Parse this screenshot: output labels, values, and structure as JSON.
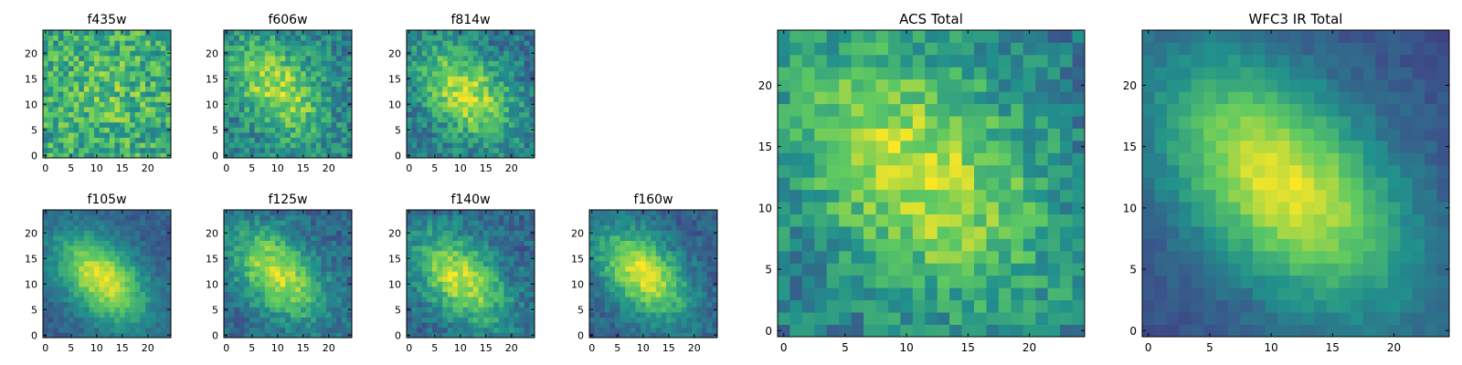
{
  "figure": {
    "background": "#ffffff",
    "colormap": "viridis",
    "colormap_stops": [
      "#440154",
      "#3b528b",
      "#21918c",
      "#5ec962",
      "#fde725"
    ]
  },
  "chart_data": [
    {
      "type": "heatmap",
      "title": "f435w",
      "grid_size": 25,
      "xlim": [
        0,
        24
      ],
      "ylim": [
        0,
        24
      ],
      "x_ticks": [
        "0",
        "5",
        "10",
        "15",
        "20"
      ],
      "y_ticks": [
        "0",
        "5",
        "10",
        "15",
        "20"
      ],
      "profile": {
        "center": [
          12,
          12
        ],
        "sigma_major": 6.0,
        "sigma_minor": 6.0,
        "angle_deg": 0,
        "peak": 0.72,
        "background": 0.6,
        "noise": 0.22
      }
    },
    {
      "type": "heatmap",
      "title": "f606w",
      "grid_size": 25,
      "xlim": [
        0,
        24
      ],
      "ylim": [
        0,
        24
      ],
      "x_ticks": [
        "0",
        "5",
        "10",
        "15",
        "20"
      ],
      "y_ticks": [
        "0",
        "5",
        "10",
        "15",
        "20"
      ],
      "profile": {
        "center": [
          10,
          13
        ],
        "sigma_major": 8.0,
        "sigma_minor": 5.0,
        "angle_deg": -50,
        "peak": 0.88,
        "background": 0.42,
        "noise": 0.17
      }
    },
    {
      "type": "heatmap",
      "title": "f814w",
      "grid_size": 25,
      "xlim": [
        0,
        24
      ],
      "ylim": [
        0,
        24
      ],
      "x_ticks": [
        "0",
        "5",
        "10",
        "15",
        "20"
      ],
      "y_ticks": [
        "0",
        "5",
        "10",
        "15",
        "20"
      ],
      "profile": {
        "center": [
          11,
          12
        ],
        "sigma_major": 8.0,
        "sigma_minor": 5.0,
        "angle_deg": -45,
        "peak": 0.9,
        "background": 0.38,
        "noise": 0.16
      }
    },
    {
      "type": "heatmap",
      "title": "f105w",
      "grid_size": 25,
      "xlim": [
        0,
        24
      ],
      "ylim": [
        0,
        24
      ],
      "x_ticks": [
        "0",
        "5",
        "10",
        "15",
        "20"
      ],
      "y_ticks": [
        "0",
        "5",
        "10",
        "15",
        "20"
      ],
      "profile": {
        "center": [
          11,
          11
        ],
        "sigma_major": 7.5,
        "sigma_minor": 4.5,
        "angle_deg": -45,
        "peak": 0.95,
        "background": 0.3,
        "noise": 0.08
      }
    },
    {
      "type": "heatmap",
      "title": "f125w",
      "grid_size": 25,
      "xlim": [
        0,
        24
      ],
      "ylim": [
        0,
        24
      ],
      "x_ticks": [
        "0",
        "5",
        "10",
        "15",
        "20"
      ],
      "y_ticks": [
        "0",
        "5",
        "10",
        "15",
        "20"
      ],
      "profile": {
        "center": [
          10,
          12
        ],
        "sigma_major": 7.5,
        "sigma_minor": 4.5,
        "angle_deg": -45,
        "peak": 0.92,
        "background": 0.33,
        "noise": 0.12
      }
    },
    {
      "type": "heatmap",
      "title": "f140w",
      "grid_size": 25,
      "xlim": [
        0,
        24
      ],
      "ylim": [
        0,
        24
      ],
      "x_ticks": [
        "0",
        "5",
        "10",
        "15",
        "20"
      ],
      "y_ticks": [
        "0",
        "5",
        "10",
        "15",
        "20"
      ],
      "profile": {
        "center": [
          10,
          11
        ],
        "sigma_major": 7.5,
        "sigma_minor": 4.5,
        "angle_deg": -45,
        "peak": 0.92,
        "background": 0.33,
        "noise": 0.12
      }
    },
    {
      "type": "heatmap",
      "title": "f160w",
      "grid_size": 25,
      "xlim": [
        0,
        24
      ],
      "ylim": [
        0,
        24
      ],
      "x_ticks": [
        "0",
        "5",
        "10",
        "15",
        "20"
      ],
      "y_ticks": [
        "0",
        "5",
        "10",
        "15",
        "20"
      ],
      "profile": {
        "center": [
          10,
          12
        ],
        "sigma_major": 7.5,
        "sigma_minor": 4.5,
        "angle_deg": -45,
        "peak": 0.95,
        "background": 0.3,
        "noise": 0.1
      }
    },
    {
      "type": "heatmap",
      "title": "ACS Total",
      "grid_size": 25,
      "xlim": [
        0,
        24
      ],
      "ylim": [
        0,
        24
      ],
      "x_ticks": [
        "0",
        "5",
        "10",
        "15",
        "20"
      ],
      "y_ticks": [
        "0",
        "5",
        "10",
        "15",
        "20"
      ],
      "profile": {
        "center": [
          11,
          13
        ],
        "sigma_major": 9.0,
        "sigma_minor": 6.0,
        "angle_deg": -45,
        "peak": 0.9,
        "background": 0.4,
        "noise": 0.15
      }
    },
    {
      "type": "heatmap",
      "title": "WFC3 IR Total",
      "grid_size": 25,
      "xlim": [
        0,
        24
      ],
      "ylim": [
        0,
        24
      ],
      "x_ticks": [
        "0",
        "5",
        "10",
        "15",
        "20"
      ],
      "y_ticks": [
        "0",
        "5",
        "10",
        "15",
        "20"
      ],
      "profile": {
        "center": [
          11,
          12
        ],
        "sigma_major": 8.5,
        "sigma_minor": 5.0,
        "angle_deg": -45,
        "peak": 0.97,
        "background": 0.25,
        "noise": 0.05
      }
    }
  ]
}
